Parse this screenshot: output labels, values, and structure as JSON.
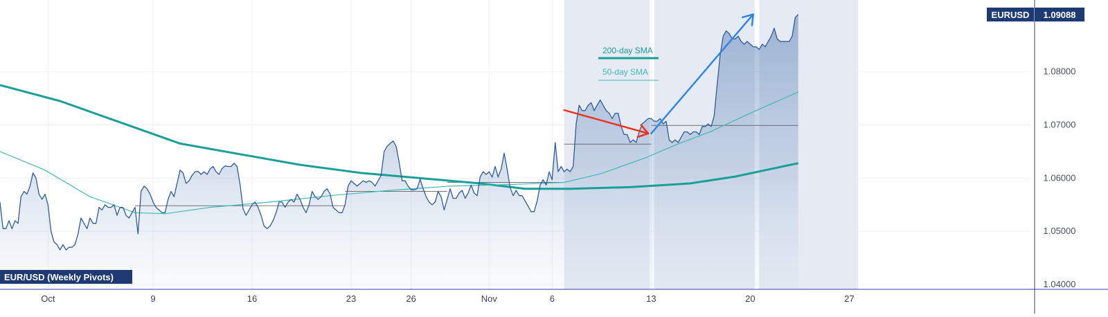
{
  "chart_data": {
    "type": "area",
    "title": "",
    "symbol_badge": "EURUSD",
    "last_price": "1.09088",
    "pane_label": "EUR/USD (Weekly Pivots)",
    "ylim": [
      1.04,
      1.0935
    ],
    "xlim": [
      0,
      300
    ],
    "y_ticks": [
      {
        "value": 1.04,
        "label": "1.04000"
      },
      {
        "value": 1.05,
        "label": "1.05000"
      },
      {
        "value": 1.06,
        "label": "1.06000"
      },
      {
        "value": 1.07,
        "label": "1.07000"
      },
      {
        "value": 1.08,
        "label": "1.08000"
      }
    ],
    "x_ticks": [
      {
        "x": 16,
        "label": "Oct"
      },
      {
        "x": 51,
        "label": "9"
      },
      {
        "x": 84,
        "label": "16"
      },
      {
        "x": 117,
        "label": "23"
      },
      {
        "x": 137,
        "label": "26"
      },
      {
        "x": 163,
        "label": "Nov"
      },
      {
        "x": 184,
        "label": "6"
      },
      {
        "x": 217,
        "label": "13"
      },
      {
        "x": 250,
        "label": "20"
      },
      {
        "x": 283,
        "label": "27"
      }
    ],
    "price": [
      [
        0,
        1.0555
      ],
      [
        1,
        1.0505
      ],
      [
        2,
        1.0505
      ],
      [
        3,
        1.052
      ],
      [
        4,
        1.0505
      ],
      [
        5,
        1.052
      ],
      [
        6,
        1.0515
      ],
      [
        7,
        1.0565
      ],
      [
        8,
        1.0575
      ],
      [
        9,
        1.057
      ],
      [
        10,
        1.0585
      ],
      [
        11,
        1.061
      ],
      [
        12,
        1.06
      ],
      [
        13,
        1.057
      ],
      [
        14,
        1.056
      ],
      [
        15,
        1.057
      ],
      [
        16,
        1.055
      ],
      [
        17,
        1.05
      ],
      [
        18,
        1.048
      ],
      [
        19,
        1.0475
      ],
      [
        20,
        1.0465
      ],
      [
        21,
        1.0475
      ],
      [
        22,
        1.0465
      ],
      [
        23,
        1.047
      ],
      [
        24,
        1.047
      ],
      [
        25,
        1.0475
      ],
      [
        26,
        1.0495
      ],
      [
        27,
        1.0525
      ],
      [
        28,
        1.0515
      ],
      [
        29,
        1.0505
      ],
      [
        30,
        1.0525
      ],
      [
        31,
        1.0515
      ],
      [
        32,
        1.0515
      ],
      [
        33,
        1.0545
      ],
      [
        34,
        1.054
      ],
      [
        35,
        1.055
      ],
      [
        36,
        1.0545
      ],
      [
        37,
        1.0545
      ],
      [
        38,
        1.055
      ],
      [
        39,
        1.053
      ],
      [
        40,
        1.0545
      ],
      [
        41,
        1.0545
      ],
      [
        42,
        1.053
      ],
      [
        43,
        1.0525
      ],
      [
        44,
        1.0535
      ],
      [
        45,
        1.0545
      ],
      [
        46,
        1.0495
      ],
      [
        47,
        1.0575
      ],
      [
        48,
        1.0585
      ],
      [
        49,
        1.058
      ],
      [
        50,
        1.057
      ],
      [
        51,
        1.0555
      ],
      [
        52,
        1.0545
      ],
      [
        53,
        1.054
      ],
      [
        54,
        1.0535
      ],
      [
        55,
        1.0535
      ],
      [
        56,
        1.056
      ],
      [
        57,
        1.0575
      ],
      [
        58,
        1.0565
      ],
      [
        59,
        1.059
      ],
      [
        60,
        1.0615
      ],
      [
        61,
        1.061
      ],
      [
        62,
        1.059
      ],
      [
        63,
        1.0595
      ],
      [
        64,
        1.0605
      ],
      [
        65,
        1.0612
      ],
      [
        66,
        1.0613
      ],
      [
        67,
        1.0607
      ],
      [
        68,
        1.0612
      ],
      [
        69,
        1.0607
      ],
      [
        70,
        1.0617
      ],
      [
        71,
        1.0622
      ],
      [
        72,
        1.0612
      ],
      [
        73,
        1.0607
      ],
      [
        74,
        1.0618
      ],
      [
        75,
        1.0623
      ],
      [
        76,
        1.0622
      ],
      [
        77,
        1.0622
      ],
      [
        78,
        1.0628
      ],
      [
        79,
        1.0622
      ],
      [
        80,
        1.0588
      ],
      [
        81,
        1.0542
      ],
      [
        82,
        1.053
      ],
      [
        83,
        1.054
      ],
      [
        84,
        1.055
      ],
      [
        85,
        1.0555
      ],
      [
        86,
        1.0545
      ],
      [
        87,
        1.053
      ],
      [
        88,
        1.051
      ],
      [
        89,
        1.0505
      ],
      [
        90,
        1.051
      ],
      [
        91,
        1.052
      ],
      [
        92,
        1.0535
      ],
      [
        93,
        1.0555
      ],
      [
        94,
        1.0555
      ],
      [
        95,
        1.0545
      ],
      [
        96,
        1.0555
      ],
      [
        97,
        1.056
      ],
      [
        98,
        1.0555
      ],
      [
        99,
        1.057
      ],
      [
        100,
        1.056
      ],
      [
        101,
        1.0545
      ],
      [
        102,
        1.0535
      ],
      [
        103,
        1.055
      ],
      [
        104,
        1.0575
      ],
      [
        105,
        1.0565
      ],
      [
        106,
        1.056
      ],
      [
        107,
        1.0565
      ],
      [
        108,
        1.0575
      ],
      [
        109,
        1.058
      ],
      [
        110,
        1.057
      ],
      [
        111,
        1.0545
      ],
      [
        112,
        1.054
      ],
      [
        113,
        1.0535
      ],
      [
        114,
        1.0535
      ],
      [
        115,
        1.055
      ],
      [
        116,
        1.0585
      ],
      [
        117,
        1.0595
      ],
      [
        118,
        1.059
      ],
      [
        119,
        1.0585
      ],
      [
        120,
        1.059
      ],
      [
        121,
        1.0595
      ],
      [
        122,
        1.0592
      ],
      [
        123,
        1.0595
      ],
      [
        124,
        1.0592
      ],
      [
        125,
        1.0585
      ],
      [
        126,
        1.0595
      ],
      [
        127,
        1.0605
      ],
      [
        128,
        1.065
      ],
      [
        129,
        1.066
      ],
      [
        130,
        1.0665
      ],
      [
        131,
        1.067
      ],
      [
        132,
        1.066
      ],
      [
        133,
        1.063
      ],
      [
        134,
        1.0595
      ],
      [
        135,
        1.0595
      ],
      [
        136,
        1.0585
      ],
      [
        137,
        1.0578
      ],
      [
        138,
        1.0578
      ],
      [
        139,
        1.058
      ],
      [
        140,
        1.0598
      ],
      [
        141,
        1.058
      ],
      [
        142,
        1.0565
      ],
      [
        143,
        1.0555
      ],
      [
        144,
        1.055
      ],
      [
        145,
        1.0555
      ],
      [
        146,
        1.0575
      ],
      [
        147,
        1.0565
      ],
      [
        148,
        1.054
      ],
      [
        149,
        1.056
      ],
      [
        150,
        1.058
      ],
      [
        151,
        1.0562
      ],
      [
        152,
        1.0562
      ],
      [
        153,
        1.0572
      ],
      [
        154,
        1.0577
      ],
      [
        155,
        1.0562
      ],
      [
        156,
        1.0572
      ],
      [
        157,
        1.0587
      ],
      [
        158,
        1.0572
      ],
      [
        159,
        1.0567
      ],
      [
        160,
        1.0602
      ],
      [
        161,
        1.0612
      ],
      [
        162,
        1.0607
      ],
      [
        163,
        1.0612
      ],
      [
        164,
        1.0602
      ],
      [
        165,
        1.0622
      ],
      [
        166,
        1.0602
      ],
      [
        167,
        1.0617
      ],
      [
        168,
        1.0647
      ],
      [
        169,
        1.0617
      ],
      [
        170,
        1.0582
      ],
      [
        171,
        1.0567
      ],
      [
        172,
        1.0577
      ],
      [
        173,
        1.0567
      ],
      [
        174,
        1.0567
      ],
      [
        175,
        1.0557
      ],
      [
        176,
        1.0547
      ],
      [
        177,
        1.0537
      ],
      [
        178,
        1.0537
      ],
      [
        179,
        1.0557
      ],
      [
        180,
        1.0587
      ],
      [
        181,
        1.0597
      ],
      [
        182,
        1.0587
      ],
      [
        183,
        1.0612
      ],
      [
        184,
        1.0597
      ],
      [
        185,
        1.0667
      ],
      [
        186,
        1.0612
      ],
      [
        187,
        1.0622
      ],
      [
        188,
        1.0612
      ],
      [
        189,
        1.0617
      ],
      [
        190,
        1.0612
      ],
      [
        191,
        1.0622
      ],
      [
        192,
        1.0702
      ],
      [
        193,
        1.0737
      ],
      [
        194,
        1.0727
      ],
      [
        195,
        1.0727
      ],
      [
        196,
        1.0737
      ],
      [
        197,
        1.0742
      ],
      [
        198,
        1.0727
      ],
      [
        199,
        1.0737
      ],
      [
        200,
        1.0747
      ],
      [
        201,
        1.0737
      ],
      [
        202,
        1.0727
      ],
      [
        203,
        1.0722
      ],
      [
        204,
        1.0712
      ],
      [
        205,
        1.0722
      ],
      [
        206,
        1.0722
      ],
      [
        207,
        1.0697
      ],
      [
        208,
        1.0682
      ],
      [
        209,
        1.0682
      ],
      [
        210,
        1.0667
      ],
      [
        211,
        1.0672
      ],
      [
        212,
        1.0667
      ],
      [
        213,
        1.0687
      ],
      [
        214,
        1.0702
      ],
      [
        215,
        1.0707
      ],
      [
        216,
        1.0712
      ],
      [
        217,
        1.0712
      ],
      [
        218,
        1.0707
      ],
      [
        219,
        1.0707
      ],
      [
        220,
        1.0712
      ],
      [
        221,
        1.0702
      ],
      [
        222,
        1.0707
      ],
      [
        223,
        1.0672
      ],
      [
        224,
        1.0667
      ],
      [
        225,
        1.0672
      ],
      [
        226,
        1.0667
      ],
      [
        227,
        1.0677
      ],
      [
        228,
        1.0687
      ],
      [
        229,
        1.0687
      ],
      [
        230,
        1.0682
      ],
      [
        231,
        1.0687
      ],
      [
        232,
        1.0687
      ],
      [
        233,
        1.0682
      ],
      [
        234,
        1.0697
      ],
      [
        235,
        1.0697
      ],
      [
        236,
        1.0702
      ],
      [
        237,
        1.0697
      ],
      [
        238,
        1.0717
      ],
      [
        239,
        1.0777
      ],
      [
        240,
        1.0832
      ],
      [
        241,
        1.0867
      ],
      [
        242,
        1.0877
      ],
      [
        243,
        1.0872
      ],
      [
        244,
        1.0862
      ],
      [
        245,
        1.0862
      ],
      [
        246,
        1.0867
      ],
      [
        247,
        1.0857
      ],
      [
        248,
        1.0852
      ],
      [
        249,
        1.0857
      ],
      [
        250,
        1.0852
      ],
      [
        251,
        1.0847
      ],
      [
        252,
        1.0847
      ],
      [
        253,
        1.0842
      ],
      [
        254,
        1.0852
      ],
      [
        255,
        1.0847
      ],
      [
        256,
        1.0857
      ],
      [
        257,
        1.0867
      ],
      [
        258,
        1.0882
      ],
      [
        259,
        1.0862
      ],
      [
        260,
        1.0857
      ],
      [
        261,
        1.0857
      ],
      [
        262,
        1.0857
      ],
      [
        263,
        1.0857
      ],
      [
        264,
        1.0867
      ],
      [
        265,
        1.0902
      ],
      [
        266,
        1.0908
      ]
    ],
    "series": [
      {
        "name": "200-day SMA",
        "color": "#1a9e98",
        "points": [
          [
            0,
            1.0775
          ],
          [
            20,
            1.0745
          ],
          [
            40,
            1.0705
          ],
          [
            60,
            1.0665
          ],
          [
            80,
            1.0645
          ],
          [
            100,
            1.0625
          ],
          [
            120,
            1.061
          ],
          [
            140,
            1.06
          ],
          [
            160,
            1.059
          ],
          [
            175,
            1.058
          ],
          [
            190,
            1.058
          ],
          [
            210,
            1.0583
          ],
          [
            230,
            1.059
          ],
          [
            245,
            1.0603
          ],
          [
            266,
            1.0628
          ]
        ]
      },
      {
        "name": "50-day SMA",
        "color": "#3fb8b8",
        "points": [
          [
            0,
            1.065
          ],
          [
            15,
            1.0615
          ],
          [
            30,
            1.0565
          ],
          [
            45,
            1.0535
          ],
          [
            55,
            1.0533
          ],
          [
            70,
            1.0545
          ],
          [
            90,
            1.0555
          ],
          [
            110,
            1.0567
          ],
          [
            130,
            1.0577
          ],
          [
            150,
            1.0585
          ],
          [
            170,
            1.0588
          ],
          [
            188,
            1.0592
          ],
          [
            200,
            1.0608
          ],
          [
            215,
            1.0638
          ],
          [
            225,
            1.0662
          ],
          [
            237,
            1.0688
          ],
          [
            250,
            1.0722
          ],
          [
            266,
            1.0762
          ]
        ]
      }
    ],
    "pivot_lines": [
      {
        "x0": 45,
        "x1": 115,
        "y": 1.0548
      },
      {
        "x0": 115,
        "x1": 149,
        "y": 1.0575
      },
      {
        "x0": 149,
        "x1": 188,
        "y": 1.0592
      },
      {
        "x0": 188,
        "x1": 217,
        "y": 1.0664
      },
      {
        "x0": 217,
        "x1": 266,
        "y": 1.0699
      }
    ],
    "shaded_ranges": [
      {
        "x0": 188,
        "x1": 216.5
      },
      {
        "x0": 218,
        "x1": 251.5
      },
      {
        "x0": 253,
        "x1": 286
      }
    ],
    "arrows": [
      {
        "color": "#f0311f",
        "from": [
          188,
          1.0728
        ],
        "to": [
          216,
          1.0684
        ]
      },
      {
        "color": "#2e86e8",
        "from": [
          217,
          1.0684
        ],
        "to": [
          251,
          1.0908
        ]
      }
    ],
    "legend": {
      "placement": "top-center",
      "items": [
        {
          "label": "200-day SMA",
          "color": "#1a9e98"
        },
        {
          "label": "50-day SMA",
          "color": "#3fb8b8"
        }
      ]
    },
    "colors": {
      "price_line": "#2d5b9a",
      "area_fill": "#5d83b8",
      "grid": "#eef1f5",
      "shading": "#e3e9f2",
      "badge_bg": "#1e3a73",
      "time_marker": "#3a3aa8"
    }
  }
}
